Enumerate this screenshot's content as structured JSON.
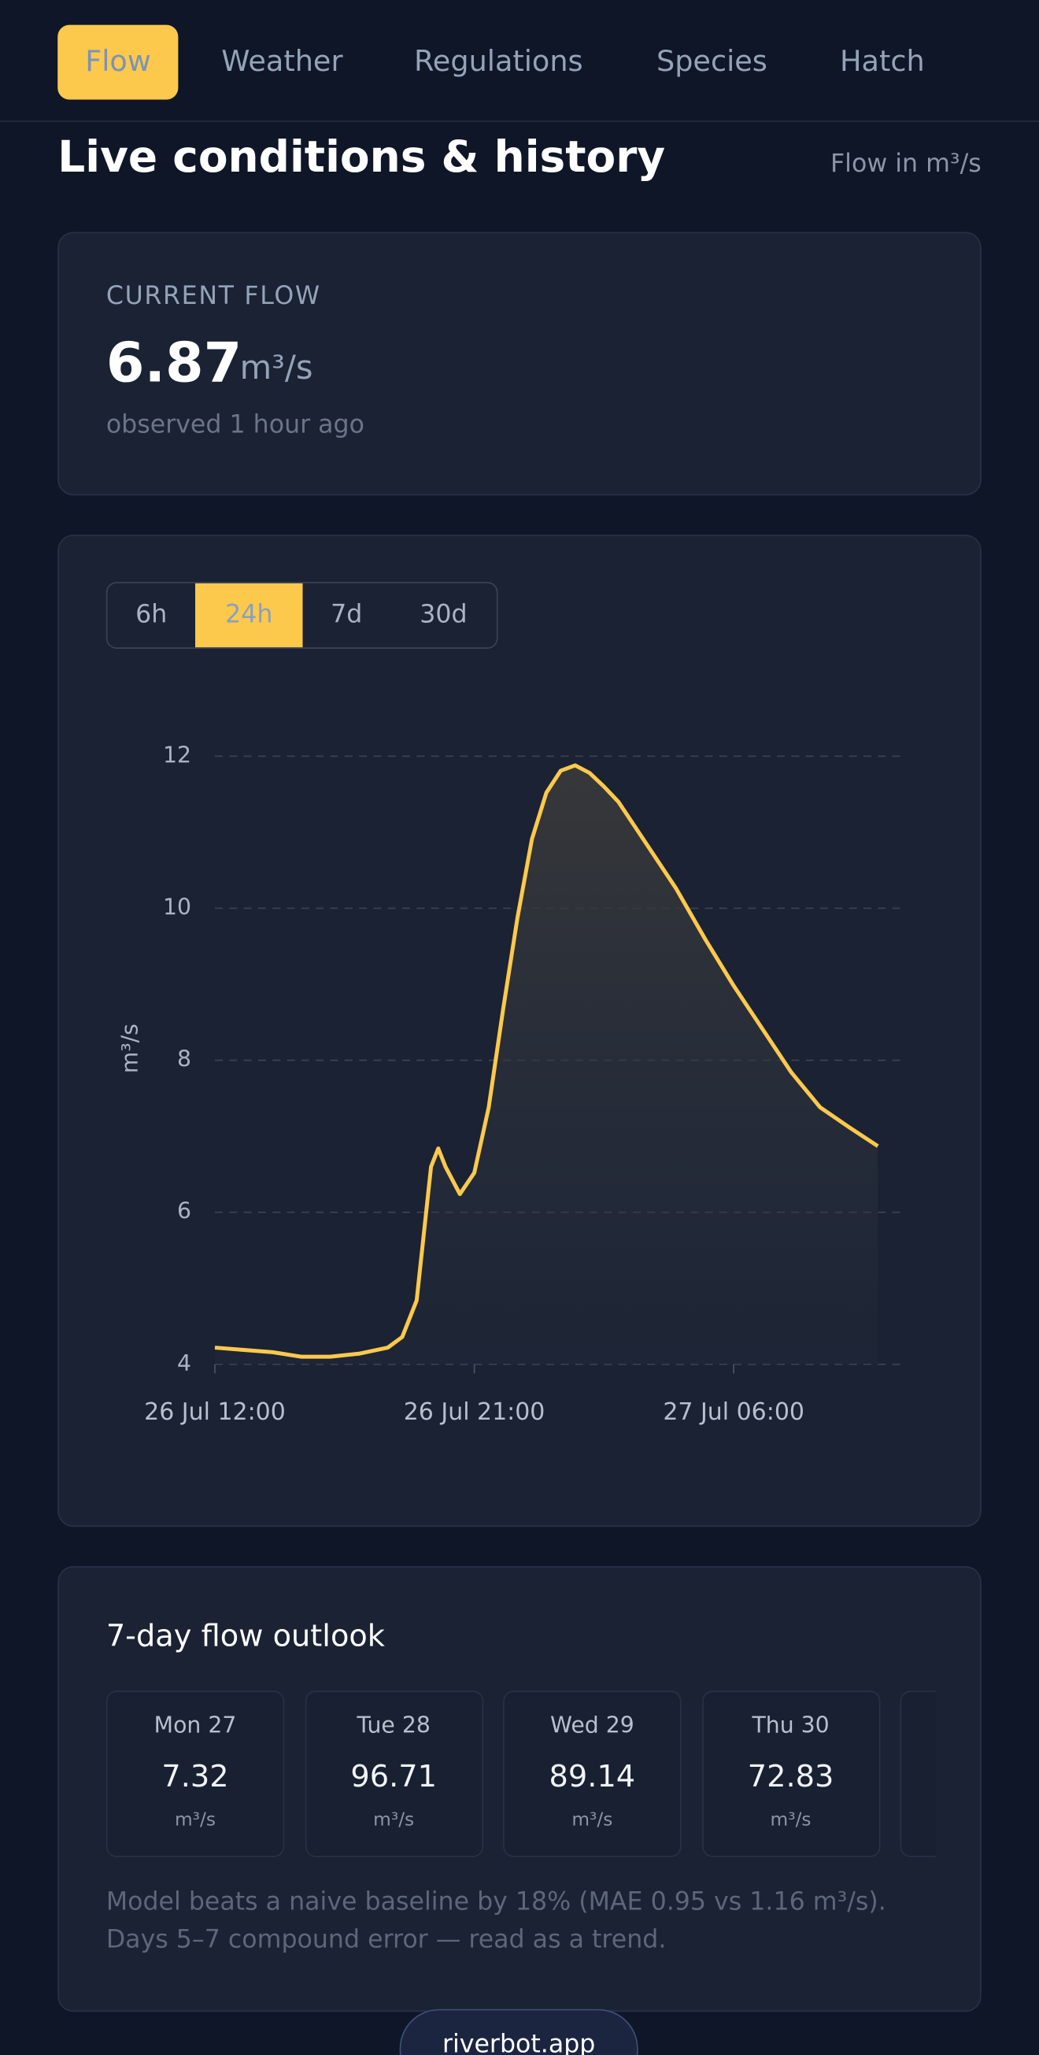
{
  "nav": {
    "items": [
      "Flow",
      "Weather",
      "Regulations",
      "Species",
      "Hatch"
    ]
  },
  "header": {
    "title": "Live conditions & history",
    "unit_note": "Flow in m³/s"
  },
  "current": {
    "label": "CURRENT FLOW",
    "value": 6.87,
    "unit": "m³/s",
    "observed": "observed 1 hour ago"
  },
  "range_tabs": [
    "6h",
    "24h",
    "7d",
    "30d"
  ],
  "chart_data": {
    "type": "line",
    "y_label": "m³/s",
    "color": "#fcc94d",
    "grid": true,
    "x": [
      "26 Jul 12:00",
      "26 Jul 13:00",
      "26 Jul 14:00",
      "26 Jul 15:00",
      "26 Jul 16:00",
      "26 Jul 17:00",
      "26 Jul 18:00",
      "26 Jul 18:30",
      "26 Jul 19:00",
      "26 Jul 19:30",
      "26 Jul 19:45",
      "26 Jul 20:00",
      "26 Jul 20:30",
      "26 Jul 21:00",
      "26 Jul 21:30",
      "26 Jul 22:00",
      "26 Jul 22:30",
      "26 Jul 23:00",
      "26 Jul 23:30",
      "27 Jul 00:00",
      "27 Jul 00:30",
      "27 Jul 01:00",
      "27 Jul 01:30",
      "27 Jul 02:00",
      "27 Jul 03:00",
      "27 Jul 04:00",
      "27 Jul 05:00",
      "27 Jul 06:00",
      "27 Jul 07:00",
      "27 Jul 08:00",
      "27 Jul 09:00",
      "27 Jul 10:00",
      "27 Jul 11:00"
    ],
    "series": [
      {
        "name": "Flow",
        "color": "#fcc94d",
        "values": [
          4.22,
          4.19,
          4.16,
          4.1,
          4.1,
          4.14,
          4.22,
          4.36,
          4.84,
          6.6,
          6.84,
          6.6,
          6.24,
          6.52,
          7.38,
          8.67,
          9.88,
          10.91,
          11.52,
          11.81,
          11.88,
          11.78,
          11.6,
          11.4,
          10.83,
          10.26,
          9.6,
          8.98,
          8.41,
          7.84,
          7.38,
          7.12,
          6.87
        ]
      }
    ],
    "xlim": [
      "26 Jul 12:00",
      "27 Jul 12:00"
    ],
    "xticks": [
      "26 Jul 12:00",
      "26 Jul 21:00",
      "27 Jul 06:00"
    ],
    "ylim": [
      4,
      12
    ],
    "yticks": [
      4,
      6,
      8,
      10,
      12
    ]
  },
  "outlook": {
    "title": "7-day flow outlook",
    "days": [
      {
        "name": "Mon 27",
        "value": 7.32,
        "unit": "m³/s"
      },
      {
        "name": "Tue 28",
        "value": 96.71,
        "unit": "m³/s"
      },
      {
        "name": "Wed 29",
        "value": 89.14,
        "unit": "m³/s"
      },
      {
        "name": "Thu 30",
        "value": 72.83,
        "unit": "m³/s"
      }
    ],
    "note": [
      "Model beats a naive baseline by 18% (MAE 0.95 vs 1.16 m³/s).",
      "Days 5–7 compound error — read as a trend."
    ]
  },
  "footer": {
    "button": "riverbot.app"
  }
}
